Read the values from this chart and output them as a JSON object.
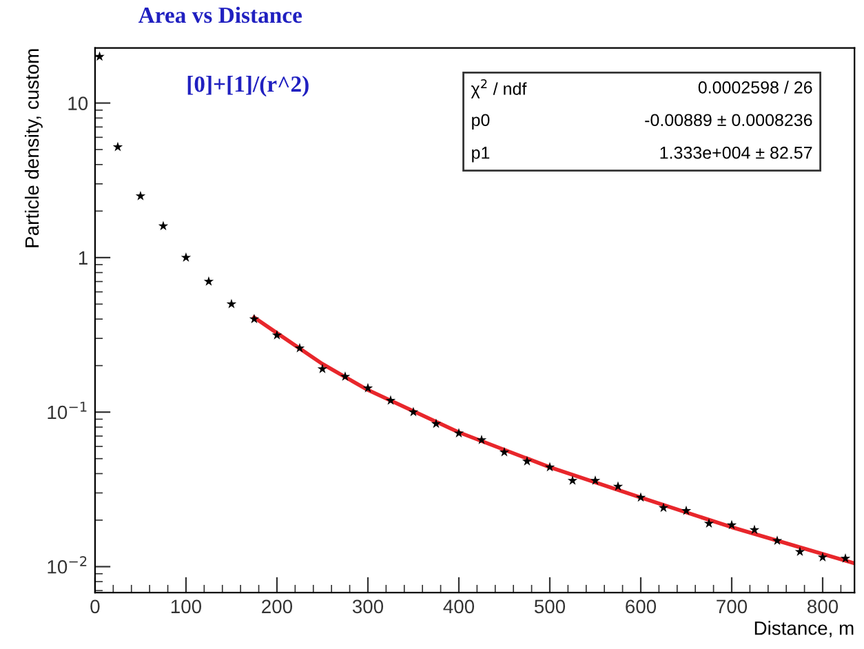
{
  "chart_data": {
    "type": "scatter",
    "title": "Area vs Distance",
    "xlabel": "Distance, m",
    "ylabel": "Particle density, custom",
    "log": "y",
    "xlim": [
      0,
      835
    ],
    "ylim": [
      0.0068,
      22.7
    ],
    "xticks": [
      0,
      100,
      200,
      300,
      400,
      500,
      600,
      700,
      800
    ],
    "yticks": [
      {
        "value": 0.01,
        "label": "10$^{−2}$"
      },
      {
        "value": 0.1,
        "label": "10$^{−1}$"
      },
      1,
      10
    ],
    "marker": "star",
    "grid": false,
    "legend": false,
    "annotations": [
      "[0]+[1]/(r^2)",
      "χ$^{2}$ / ndf",
      "0.0002598 / 26",
      "p0",
      "-0.00889 ± 0.0008236",
      "p1",
      "1.333e+004 ± 82.57"
    ],
    "series": [
      {
        "color": "#000000",
        "x": [
          5,
          25,
          50,
          75,
          100,
          125,
          150,
          175,
          200,
          225,
          250,
          275,
          300,
          325,
          350,
          375,
          400,
          425,
          450,
          475,
          500,
          525,
          550,
          575,
          600,
          625,
          650,
          675,
          700,
          725,
          750,
          775,
          800,
          825
        ],
        "values": [
          20,
          5.2,
          2.5,
          1.6,
          1.0,
          0.7,
          0.5,
          0.4,
          0.314,
          0.259,
          0.19,
          0.17,
          0.143,
          0.119,
          0.1,
          0.084,
          0.073,
          0.066,
          0.055,
          0.048,
          0.044,
          0.036,
          0.036,
          0.033,
          0.028,
          0.024,
          0.023,
          0.019,
          0.0186,
          0.0173,
          0.0147,
          0.0125,
          0.0115,
          0.0113
        ]
      },
      {
        "type": "line",
        "marker": "none",
        "color": "#e8262b",
        "x": [
          175,
          200,
          250,
          300,
          400,
          500,
          600,
          700,
          835
        ],
        "values": [
          0.41,
          0.325,
          0.205,
          0.139,
          0.074,
          0.044,
          0.028,
          0.018,
          0.0105
        ]
      }
    ]
  }
}
